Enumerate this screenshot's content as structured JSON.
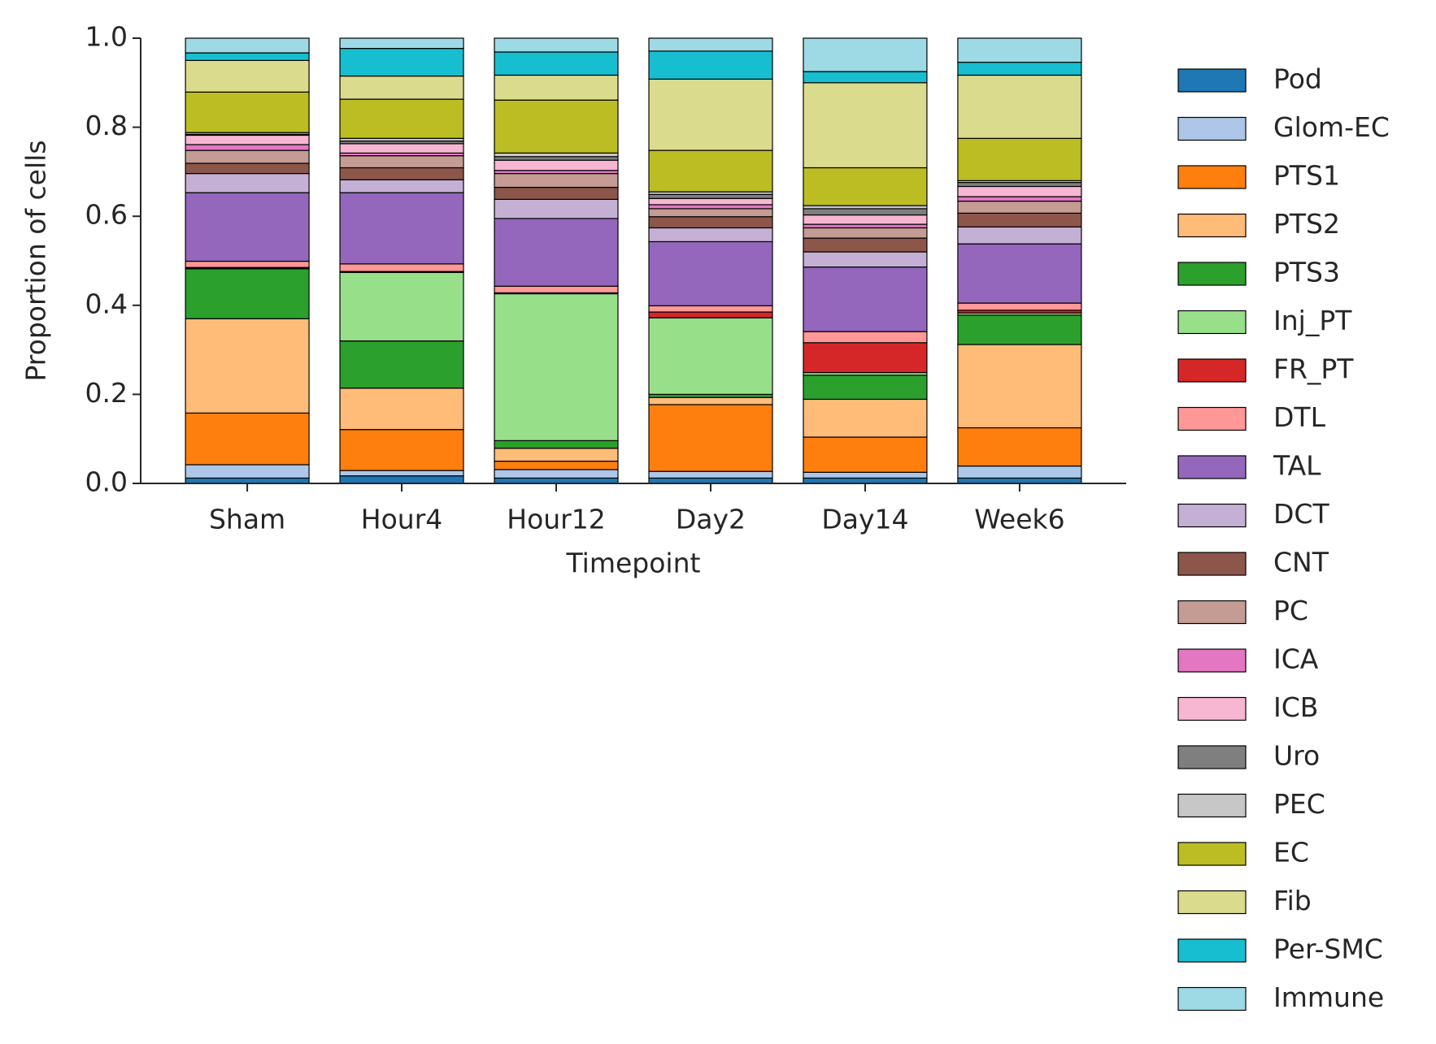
{
  "chart_data": {
    "type": "stacked_bar",
    "x_label": "Timepoint",
    "y_label": "Proportion of cells",
    "categories": [
      "Sham",
      "Hour4",
      "Hour12",
      "Day2",
      "Day14",
      "Week6"
    ],
    "ylim": [
      0,
      1
    ],
    "yticks": [
      {
        "value": 0,
        "label": "0.0"
      },
      0.2,
      0.4,
      0.6,
      0.8,
      {
        "value": 1,
        "label": "1.0"
      }
    ],
    "legend": "outside right",
    "series": [
      {
        "name": "Pod",
        "color": "#1f77b4",
        "values": [
          0.012,
          0.017,
          0.012,
          0.012,
          0.012,
          0.012
        ]
      },
      {
        "name": "Glom-EC",
        "color": "#aec7e8",
        "values": [
          0.03,
          0.012,
          0.019,
          0.015,
          0.013,
          0.027
        ]
      },
      {
        "name": "PTS1",
        "color": "#ff7f0e",
        "values": [
          0.116,
          0.092,
          0.019,
          0.15,
          0.079,
          0.086
        ]
      },
      {
        "name": "PTS2",
        "color": "#ffbb78",
        "values": [
          0.212,
          0.093,
          0.029,
          0.016,
          0.085,
          0.187
        ]
      },
      {
        "name": "PTS3",
        "color": "#2ca02c",
        "values": [
          0.112,
          0.106,
          0.017,
          0.007,
          0.054,
          0.066
        ]
      },
      {
        "name": "Inj_PT",
        "color": "#98df8a",
        "values": [
          0.002,
          0.154,
          0.33,
          0.172,
          0.006,
          0.005
        ]
      },
      {
        "name": "FR_PT",
        "color": "#d62728",
        "values": [
          0.001,
          0.002,
          0.002,
          0.013,
          0.067,
          0.006
        ]
      },
      {
        "name": "DTL",
        "color": "#ff9896",
        "values": [
          0.014,
          0.017,
          0.015,
          0.014,
          0.025,
          0.016
        ]
      },
      {
        "name": "TAL",
        "color": "#9467bd",
        "values": [
          0.154,
          0.16,
          0.152,
          0.144,
          0.145,
          0.133
        ]
      },
      {
        "name": "DCT",
        "color": "#c5b0d5",
        "values": [
          0.043,
          0.029,
          0.043,
          0.031,
          0.034,
          0.038
        ]
      },
      {
        "name": "CNT",
        "color": "#8c564b",
        "values": [
          0.023,
          0.027,
          0.027,
          0.025,
          0.031,
          0.031
        ]
      },
      {
        "name": "PC",
        "color": "#c49c94",
        "values": [
          0.029,
          0.027,
          0.031,
          0.018,
          0.023,
          0.027
        ]
      },
      {
        "name": "ICA",
        "color": "#e377c2",
        "values": [
          0.013,
          0.006,
          0.007,
          0.009,
          0.008,
          0.01
        ]
      },
      {
        "name": "ICB",
        "color": "#f7b6d2",
        "values": [
          0.021,
          0.021,
          0.023,
          0.014,
          0.021,
          0.023
        ]
      },
      {
        "name": "Uro",
        "color": "#7f7f7f",
        "values": [
          0.002,
          0.006,
          0.008,
          0.009,
          0.014,
          0.009
        ]
      },
      {
        "name": "PEC",
        "color": "#c7c7c7",
        "values": [
          0.004,
          0.006,
          0.008,
          0.006,
          0.007,
          0.004
        ]
      },
      {
        "name": "EC",
        "color": "#bcbd22",
        "values": [
          0.091,
          0.088,
          0.119,
          0.093,
          0.085,
          0.095
        ]
      },
      {
        "name": "Fib",
        "color": "#dbdb8d",
        "values": [
          0.071,
          0.052,
          0.056,
          0.16,
          0.191,
          0.142
        ]
      },
      {
        "name": "Per-SMC",
        "color": "#17becf",
        "values": [
          0.017,
          0.062,
          0.052,
          0.063,
          0.025,
          0.029
        ]
      },
      {
        "name": "Immune",
        "color": "#9edae5",
        "values": [
          0.033,
          0.023,
          0.031,
          0.029,
          0.075,
          0.054
        ]
      }
    ]
  }
}
